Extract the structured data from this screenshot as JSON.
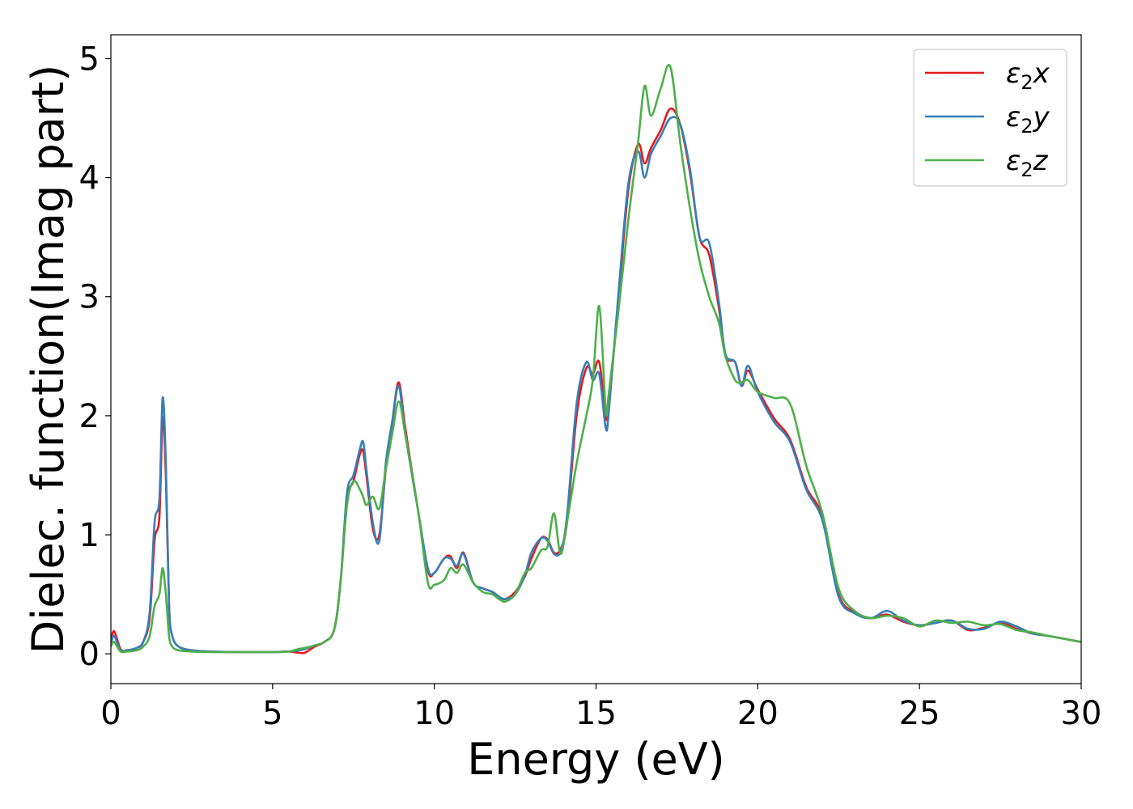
{
  "chart_data": {
    "type": "line",
    "title": "",
    "xlabel": "Energy (eV)",
    "ylabel": "Dielec. function(Imag part)",
    "xlim": [
      0,
      30
    ],
    "ylim": [
      -0.25,
      5.2
    ],
    "xticks": [
      "0",
      "5",
      "10",
      "15",
      "20",
      "25",
      "30"
    ],
    "yticks": [
      "0",
      "1",
      "2",
      "3",
      "4",
      "5"
    ],
    "grid": false,
    "legend_position": "top-right",
    "series": [
      {
        "name": "ε2x",
        "legend_base": "ε",
        "legend_sub": "2",
        "legend_var": "x",
        "color": "#e41a1c",
        "x": [
          0,
          0.1,
          0.3,
          0.5,
          0.8,
          1.0,
          1.2,
          1.35,
          1.5,
          1.6,
          1.7,
          1.8,
          1.9,
          2.1,
          2.5,
          3,
          4,
          5,
          5.5,
          5.8,
          6.0,
          6.3,
          6.6,
          6.9,
          7.1,
          7.3,
          7.5,
          7.7,
          7.8,
          7.9,
          8.1,
          8.3,
          8.5,
          8.7,
          8.9,
          9.1,
          9.5,
          9.8,
          10.0,
          10.3,
          10.5,
          10.7,
          10.9,
          11.2,
          11.5,
          11.8,
          12.0,
          12.2,
          12.5,
          12.8,
          13.0,
          13.3,
          13.5,
          13.7,
          13.9,
          14.1,
          14.4,
          14.7,
          14.9,
          15.1,
          15.3,
          15.4,
          15.7,
          16.0,
          16.3,
          16.5,
          16.7,
          17.0,
          17.3,
          17.6,
          17.9,
          18.2,
          18.5,
          18.8,
          19.0,
          19.3,
          19.5,
          19.7,
          20.0,
          20.5,
          21.0,
          21.5,
          22.0,
          22.5,
          23.0,
          23.5,
          24.0,
          24.5,
          25.0,
          25.5,
          26.0,
          26.5,
          27.0,
          27.5,
          28.0,
          28.5,
          29.0,
          30.0
        ],
        "y": [
          0.1,
          0.19,
          0.04,
          0.03,
          0.05,
          0.1,
          0.3,
          0.95,
          1.15,
          1.98,
          1.5,
          0.4,
          0.15,
          0.06,
          0.03,
          0.02,
          0.015,
          0.015,
          0.02,
          0.01,
          0.01,
          0.06,
          0.1,
          0.2,
          0.6,
          1.3,
          1.45,
          1.68,
          1.7,
          1.5,
          1.05,
          1.0,
          1.55,
          1.95,
          2.28,
          1.9,
          1.2,
          0.7,
          0.68,
          0.8,
          0.82,
          0.72,
          0.85,
          0.6,
          0.55,
          0.52,
          0.48,
          0.46,
          0.52,
          0.65,
          0.8,
          0.97,
          0.96,
          0.85,
          0.88,
          1.1,
          2.0,
          2.4,
          2.35,
          2.45,
          2.0,
          2.1,
          3.0,
          3.9,
          4.28,
          4.12,
          4.25,
          4.4,
          4.58,
          4.45,
          4.05,
          3.5,
          3.35,
          2.9,
          2.5,
          2.45,
          2.25,
          2.38,
          2.22,
          1.98,
          1.8,
          1.4,
          1.15,
          0.5,
          0.35,
          0.3,
          0.33,
          0.27,
          0.24,
          0.26,
          0.28,
          0.2,
          0.22,
          0.26,
          0.21,
          0.17,
          0.15,
          0.1
        ]
      },
      {
        "name": "ε2y",
        "legend_base": "ε",
        "legend_sub": "2",
        "legend_var": "y",
        "color": "#377eb8",
        "x": [
          0,
          0.1,
          0.3,
          0.5,
          0.8,
          1.0,
          1.2,
          1.35,
          1.5,
          1.6,
          1.7,
          1.8,
          1.9,
          2.1,
          2.5,
          3,
          4,
          5,
          5.5,
          5.8,
          6.0,
          6.3,
          6.6,
          6.9,
          7.1,
          7.3,
          7.5,
          7.7,
          7.8,
          7.9,
          8.1,
          8.3,
          8.5,
          8.7,
          8.9,
          9.1,
          9.5,
          9.8,
          10.0,
          10.3,
          10.5,
          10.7,
          10.9,
          11.2,
          11.5,
          11.8,
          12.0,
          12.2,
          12.5,
          12.8,
          13.0,
          13.3,
          13.5,
          13.7,
          13.9,
          14.1,
          14.4,
          14.7,
          14.9,
          15.1,
          15.3,
          15.4,
          15.7,
          16.0,
          16.3,
          16.5,
          16.7,
          17.0,
          17.3,
          17.6,
          17.9,
          18.2,
          18.5,
          18.8,
          19.0,
          19.3,
          19.5,
          19.7,
          20.0,
          20.5,
          21.0,
          21.5,
          22.0,
          22.5,
          23.0,
          23.5,
          24.0,
          24.5,
          25.0,
          25.5,
          26.0,
          26.5,
          27.0,
          27.5,
          28.0,
          28.5,
          29.0,
          30.0
        ],
        "y": [
          0.08,
          0.15,
          0.03,
          0.03,
          0.05,
          0.1,
          0.35,
          1.1,
          1.3,
          2.15,
          1.6,
          0.4,
          0.15,
          0.06,
          0.03,
          0.02,
          0.015,
          0.015,
          0.02,
          0.03,
          0.04,
          0.07,
          0.1,
          0.2,
          0.6,
          1.35,
          1.5,
          1.72,
          1.78,
          1.55,
          1.1,
          0.95,
          1.6,
          1.95,
          2.25,
          1.85,
          1.2,
          0.72,
          0.68,
          0.8,
          0.8,
          0.74,
          0.84,
          0.6,
          0.55,
          0.52,
          0.48,
          0.46,
          0.5,
          0.66,
          0.85,
          0.97,
          0.95,
          0.84,
          0.86,
          1.15,
          2.1,
          2.45,
          2.3,
          2.35,
          1.9,
          2.05,
          3.05,
          3.95,
          4.22,
          4.0,
          4.2,
          4.35,
          4.5,
          4.45,
          4.08,
          3.5,
          3.45,
          2.95,
          2.52,
          2.45,
          2.25,
          2.42,
          2.2,
          1.95,
          1.78,
          1.38,
          1.12,
          0.48,
          0.34,
          0.3,
          0.36,
          0.28,
          0.24,
          0.26,
          0.28,
          0.21,
          0.21,
          0.27,
          0.23,
          0.17,
          0.15,
          0.1
        ]
      },
      {
        "name": "ε2z",
        "legend_base": "ε",
        "legend_sub": "2",
        "legend_var": "z",
        "color": "#4daf4a",
        "x": [
          0,
          0.1,
          0.3,
          0.5,
          0.8,
          1.0,
          1.2,
          1.35,
          1.5,
          1.6,
          1.7,
          1.8,
          1.9,
          2.1,
          2.5,
          3,
          4,
          5,
          5.5,
          5.8,
          6.0,
          6.3,
          6.6,
          6.9,
          7.1,
          7.3,
          7.5,
          7.7,
          7.8,
          7.9,
          8.1,
          8.3,
          8.5,
          8.7,
          8.9,
          9.1,
          9.5,
          9.8,
          10.0,
          10.3,
          10.5,
          10.7,
          10.9,
          11.2,
          11.5,
          11.8,
          12.0,
          12.2,
          12.5,
          12.8,
          13.0,
          13.3,
          13.5,
          13.7,
          13.9,
          14.1,
          14.4,
          14.7,
          14.9,
          15.1,
          15.3,
          15.4,
          15.7,
          16.0,
          16.3,
          16.5,
          16.7,
          17.0,
          17.3,
          17.6,
          17.9,
          18.2,
          18.5,
          18.8,
          19.0,
          19.3,
          19.5,
          19.7,
          20.0,
          20.5,
          21.0,
          21.5,
          22.0,
          22.5,
          23.0,
          23.5,
          24.0,
          24.5,
          25.0,
          25.5,
          26.0,
          26.5,
          27.0,
          27.5,
          28.0,
          28.5,
          29.0,
          30.0
        ],
        "y": [
          0.06,
          0.1,
          0.02,
          0.02,
          0.03,
          0.06,
          0.15,
          0.4,
          0.5,
          0.72,
          0.5,
          0.15,
          0.06,
          0.03,
          0.02,
          0.015,
          0.015,
          0.015,
          0.02,
          0.04,
          0.05,
          0.07,
          0.1,
          0.2,
          0.6,
          1.25,
          1.45,
          1.38,
          1.32,
          1.25,
          1.32,
          1.22,
          1.55,
          1.85,
          2.12,
          1.85,
          1.2,
          0.6,
          0.58,
          0.62,
          0.72,
          0.68,
          0.75,
          0.6,
          0.52,
          0.5,
          0.46,
          0.44,
          0.5,
          0.68,
          0.72,
          0.87,
          0.9,
          1.18,
          0.84,
          1.1,
          1.6,
          2.0,
          2.3,
          2.92,
          2.05,
          2.2,
          2.9,
          3.65,
          4.3,
          4.77,
          4.52,
          4.75,
          4.93,
          4.3,
          3.75,
          3.3,
          3.0,
          2.78,
          2.5,
          2.3,
          2.28,
          2.3,
          2.2,
          2.15,
          2.1,
          1.58,
          1.18,
          0.55,
          0.36,
          0.3,
          0.32,
          0.3,
          0.23,
          0.28,
          0.26,
          0.27,
          0.24,
          0.25,
          0.2,
          0.18,
          0.15,
          0.1
        ]
      }
    ]
  }
}
